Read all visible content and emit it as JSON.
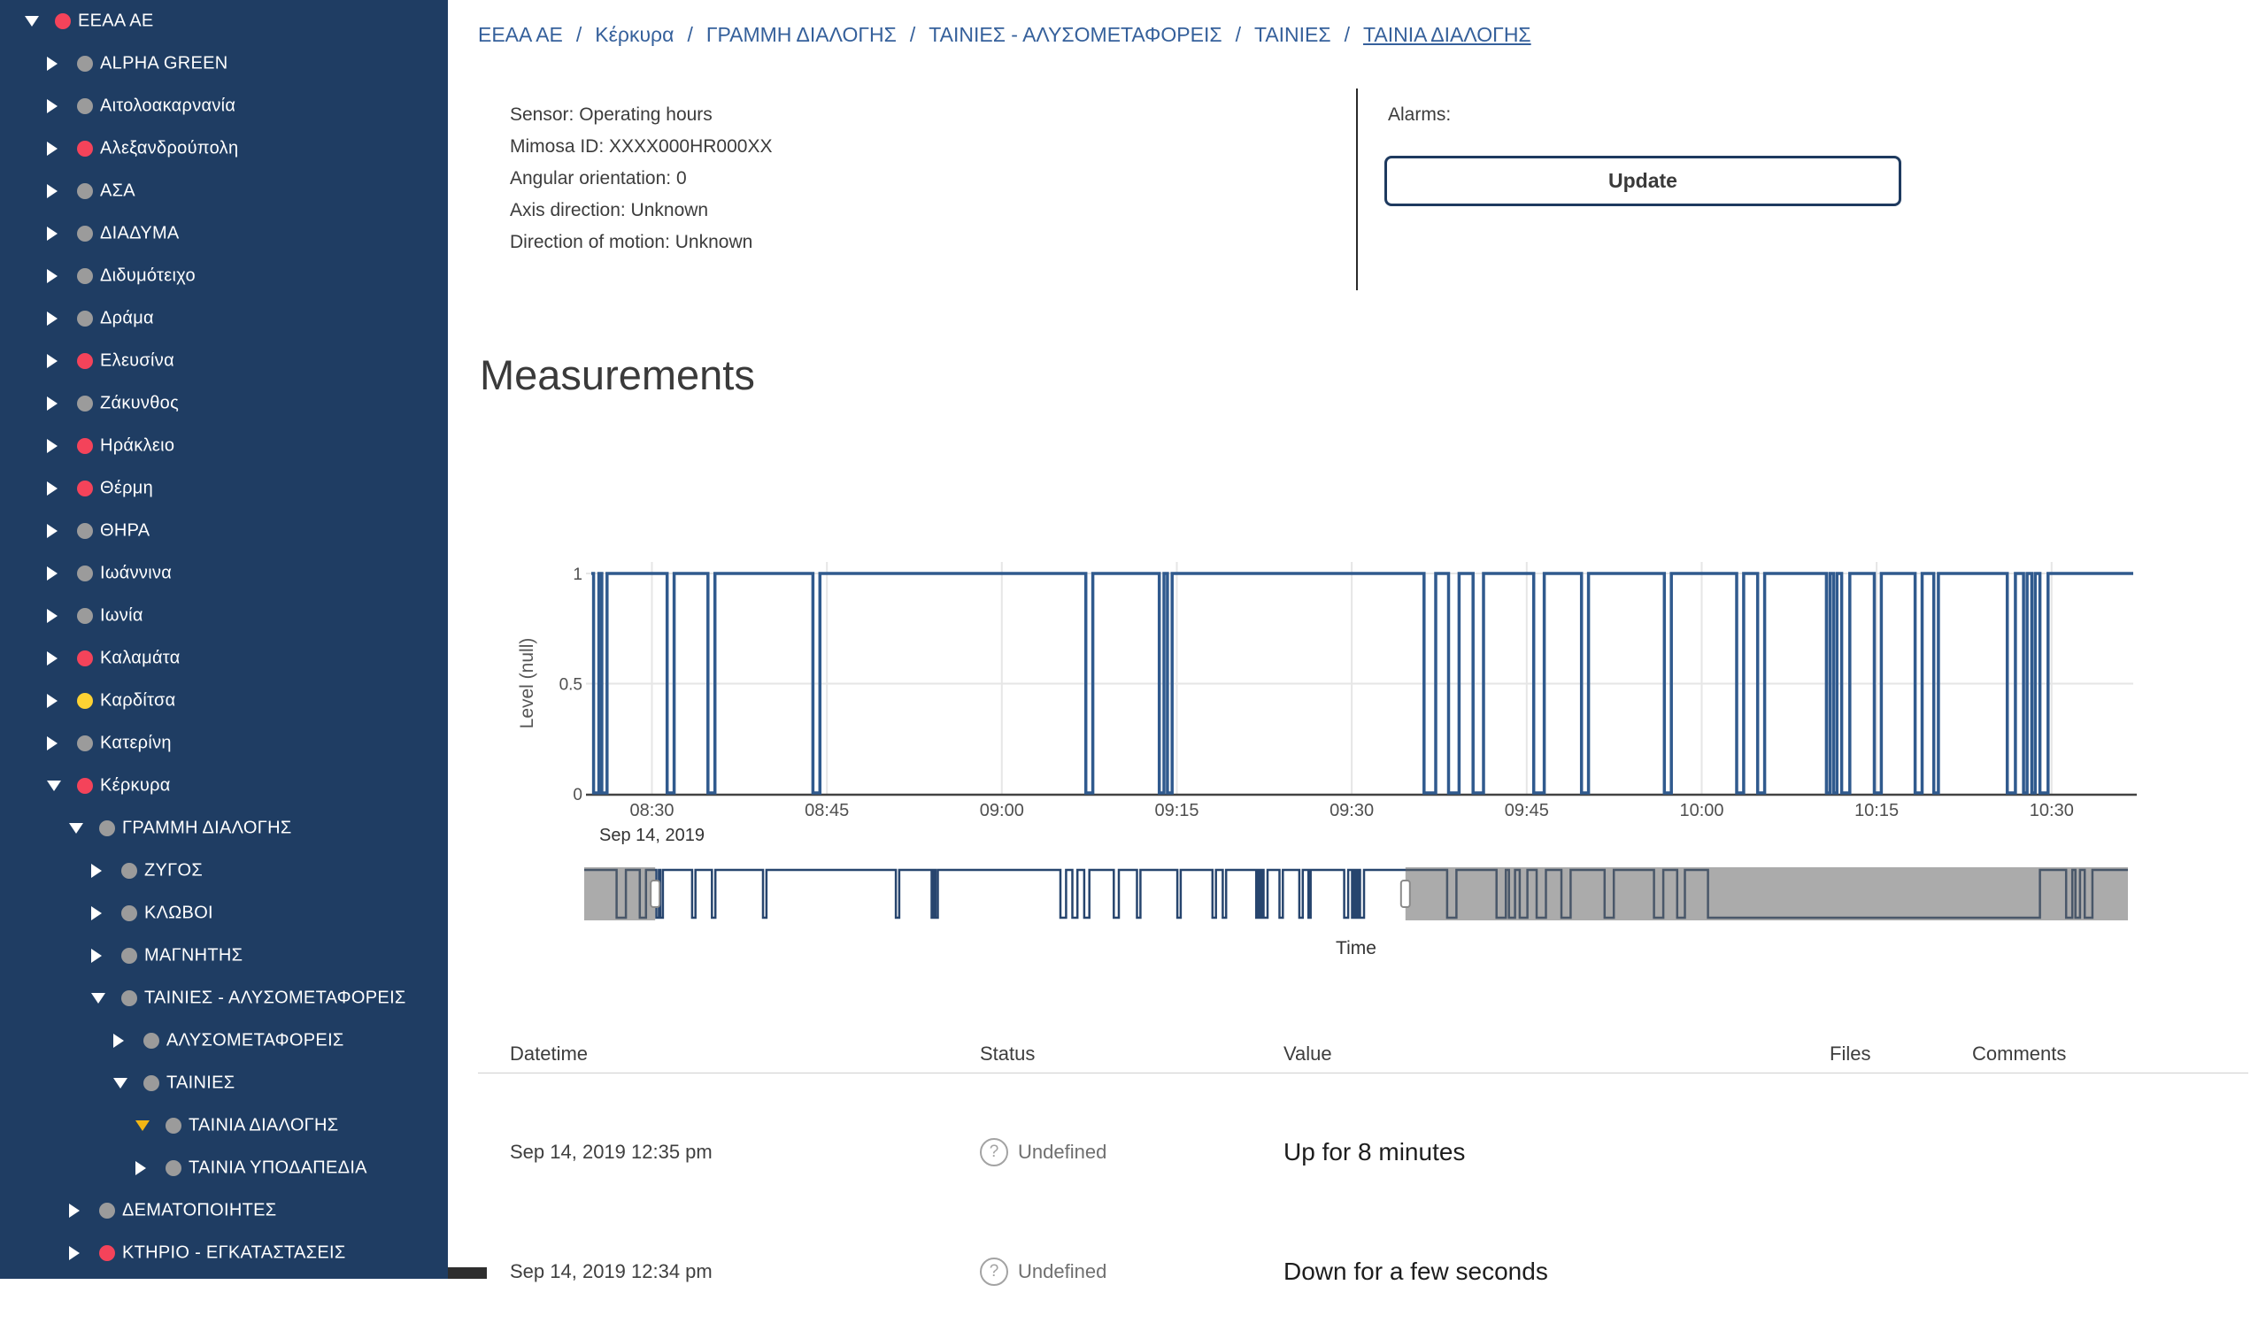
{
  "sidebar": {
    "items": [
      {
        "label": "EEAA AE",
        "level": 0,
        "dot": "red",
        "arrow": "expanded"
      },
      {
        "label": "ALPHA GREEN",
        "level": 1,
        "dot": "gray",
        "arrow": "collapsed"
      },
      {
        "label": "Αιτολοακαρνανία",
        "level": 1,
        "dot": "gray",
        "arrow": "collapsed"
      },
      {
        "label": "Αλεξανδρούπολη",
        "level": 1,
        "dot": "red",
        "arrow": "collapsed"
      },
      {
        "label": "ΑΣΑ",
        "level": 1,
        "dot": "gray",
        "arrow": "collapsed"
      },
      {
        "label": "ΔΙΑΔΥΜΑ",
        "level": 1,
        "dot": "gray",
        "arrow": "collapsed"
      },
      {
        "label": "Διδυμότειχο",
        "level": 1,
        "dot": "gray",
        "arrow": "collapsed"
      },
      {
        "label": "Δράμα",
        "level": 1,
        "dot": "gray",
        "arrow": "collapsed"
      },
      {
        "label": "Ελευσίνα",
        "level": 1,
        "dot": "red",
        "arrow": "collapsed"
      },
      {
        "label": "Ζάκυνθος",
        "level": 1,
        "dot": "gray",
        "arrow": "collapsed"
      },
      {
        "label": "Ηράκλειο",
        "level": 1,
        "dot": "red",
        "arrow": "collapsed"
      },
      {
        "label": "Θέρμη",
        "level": 1,
        "dot": "red",
        "arrow": "collapsed"
      },
      {
        "label": "ΘΗΡΑ",
        "level": 1,
        "dot": "gray",
        "arrow": "collapsed"
      },
      {
        "label": "Ιωάννινα",
        "level": 1,
        "dot": "gray",
        "arrow": "collapsed"
      },
      {
        "label": "Ιωνία",
        "level": 1,
        "dot": "gray",
        "arrow": "collapsed"
      },
      {
        "label": "Καλαμάτα",
        "level": 1,
        "dot": "red",
        "arrow": "collapsed"
      },
      {
        "label": "Καρδίτσα",
        "level": 1,
        "dot": "yellow",
        "arrow": "collapsed"
      },
      {
        "label": "Κατερίνη",
        "level": 1,
        "dot": "gray",
        "arrow": "collapsed"
      },
      {
        "label": "Κέρκυρα",
        "level": 1,
        "dot": "red",
        "arrow": "expanded"
      },
      {
        "label": "ΓΡΑΜΜΗ ΔΙΑΛΟΓΗΣ",
        "level": 2,
        "dot": "gray",
        "arrow": "expanded"
      },
      {
        "label": "ΖΥΓΟΣ",
        "level": 3,
        "dot": "gray",
        "arrow": "collapsed"
      },
      {
        "label": "ΚΛΩΒΟΙ",
        "level": 3,
        "dot": "gray",
        "arrow": "collapsed"
      },
      {
        "label": "ΜΑΓΝΗΤΗΣ",
        "level": 3,
        "dot": "gray",
        "arrow": "collapsed"
      },
      {
        "label": "ΤΑΙΝΙΕΣ - ΑΛΥΣΟΜΕΤΑΦΟΡΕΙΣ",
        "level": 3,
        "dot": "gray",
        "arrow": "expanded"
      },
      {
        "label": "ΑΛΥΣΟΜΕΤΑΦΟΡΕΙΣ",
        "level": 4,
        "dot": "gray",
        "arrow": "collapsed"
      },
      {
        "label": "ΤΑΙΝΙΕΣ",
        "level": 4,
        "dot": "gray",
        "arrow": "expanded"
      },
      {
        "label": "ΤΑΙΝΙΑ ΔΙΑΛΟΓΗΣ",
        "level": 5,
        "dot": "gray",
        "arrow": "expanded-selected"
      },
      {
        "label": "ΤΑΙΝΙΑ ΥΠΟΔΑΠΕΔΙΑ",
        "level": 5,
        "dot": "gray",
        "arrow": "collapsed"
      },
      {
        "label": "ΔΕΜΑΤΟΠΟΙΗΤΕΣ",
        "level": 2,
        "dot": "gray",
        "arrow": "collapsed"
      },
      {
        "label": "ΚΤΗΡΙΟ - ΕΓΚΑΤΑΣΤΑΣΕΙΣ",
        "level": 2,
        "dot": "red",
        "arrow": "collapsed"
      }
    ],
    "dot_colors": {
      "red": "#f4435a",
      "gray": "#9b9b9b",
      "yellow": "#fdd233"
    }
  },
  "breadcrumb": {
    "items": [
      "EEAA AE",
      "Κέρκυρα",
      "ΓΡΑΜΜΗ ΔΙΑΛΟΓΗΣ",
      "ΤΑΙΝΙΕΣ - ΑΛΥΣΟΜΕΤΑΦΟΡΕΙΣ",
      "ΤΑΙΝΙΕΣ",
      "ΤΑΙΝΙΑ ΔΙΑΛΟΓΗΣ"
    ],
    "separator": "/"
  },
  "sensor_info": {
    "lines": [
      "Sensor: Operating hours",
      "Mimosa ID: XXXX000HR000XX",
      "Angular orientation: 0",
      "Axis direction: Unknown",
      "Direction of motion: Unknown"
    ]
  },
  "alarms": {
    "label": "Alarms:",
    "update_button": "Update"
  },
  "measurements": {
    "title": "Measurements"
  },
  "chart_data": {
    "type": "line",
    "subtype": "digital-step-stock-chart",
    "title": "",
    "ylabel": "Level (null)",
    "xlabel": "Time",
    "date_label": "Sep 14, 2019",
    "ylim": [
      0,
      1
    ],
    "y_ticks": [
      0,
      0.5,
      1
    ],
    "y_tick_labels": [
      "0",
      "0.5",
      "1"
    ],
    "x_ticks": [
      "08:30",
      "08:45",
      "09:00",
      "09:15",
      "09:30",
      "09:45",
      "10:00",
      "10:15",
      "10:30"
    ],
    "x_tick_minutes": [
      30,
      45,
      60,
      75,
      90,
      105,
      120,
      135,
      150
    ],
    "x_range_minutes": [
      24.8,
      157
    ],
    "line_color": "#305a8e",
    "grid_color": "#e6e6e6",
    "axis_line_color": "#424242",
    "series": [
      {
        "name": "Level",
        "on_value": 1,
        "off_value": 0,
        "off_intervals_min": [
          [
            25.0,
            25.45
          ],
          [
            25.7,
            26.15
          ],
          [
            31.3,
            31.9
          ],
          [
            34.8,
            35.4
          ],
          [
            43.8,
            44.4
          ],
          [
            67.2,
            67.8
          ],
          [
            73.5,
            73.9
          ],
          [
            74.2,
            74.6
          ],
          [
            96.2,
            97.2
          ],
          [
            98.3,
            99.2
          ],
          [
            100.4,
            101.3
          ],
          [
            105.6,
            106.5
          ],
          [
            109.7,
            110.3
          ],
          [
            116.8,
            117.4
          ],
          [
            123.0,
            123.6
          ],
          [
            124.8,
            125.4
          ],
          [
            130.7,
            131.0
          ],
          [
            131.3,
            131.6
          ],
          [
            132.0,
            132.7
          ],
          [
            134.8,
            135.4
          ],
          [
            138.3,
            138.9
          ],
          [
            139.9,
            140.3
          ],
          [
            146.2,
            146.9
          ],
          [
            147.6,
            147.9
          ],
          [
            148.3,
            148.6
          ],
          [
            149.0,
            149.7
          ]
        ]
      }
    ],
    "navigator": {
      "window": [
        0.046,
        0.532
      ],
      "mask_color": "rgba(102,102,102,0.55)",
      "extra_off_intervals_frac": [
        [
          0.021,
          0.027
        ],
        [
          0.036,
          0.04
        ],
        [
          0.559,
          0.565
        ],
        [
          0.591,
          0.597
        ],
        [
          0.599,
          0.603
        ],
        [
          0.606,
          0.611
        ],
        [
          0.617,
          0.623
        ],
        [
          0.633,
          0.639
        ],
        [
          0.661,
          0.667
        ],
        [
          0.693,
          0.699
        ],
        [
          0.708,
          0.713
        ],
        [
          0.728,
          0.943
        ],
        [
          0.96,
          0.964
        ],
        [
          0.966,
          0.969
        ],
        [
          0.972,
          0.977
        ]
      ]
    }
  },
  "table": {
    "headers": [
      "Datetime",
      "Status",
      "Value",
      "Files",
      "Comments"
    ],
    "rows": [
      {
        "datetime": "Sep 14, 2019 12:35 pm",
        "status": "Undefined",
        "status_icon": "question-circle",
        "value": "Up for 8 minutes",
        "files": "",
        "comments": ""
      },
      {
        "datetime": "Sep 14, 2019 12:34 pm",
        "status": "Undefined",
        "status_icon": "question-circle",
        "value": "Down for a few seconds",
        "files": "",
        "comments": ""
      }
    ]
  },
  "colors": {
    "sidebar_bg": "#1f3d63",
    "breadcrumb_link": "#35609b",
    "selected_arrow": "#f2b614",
    "update_border": "#1e3a5f"
  }
}
